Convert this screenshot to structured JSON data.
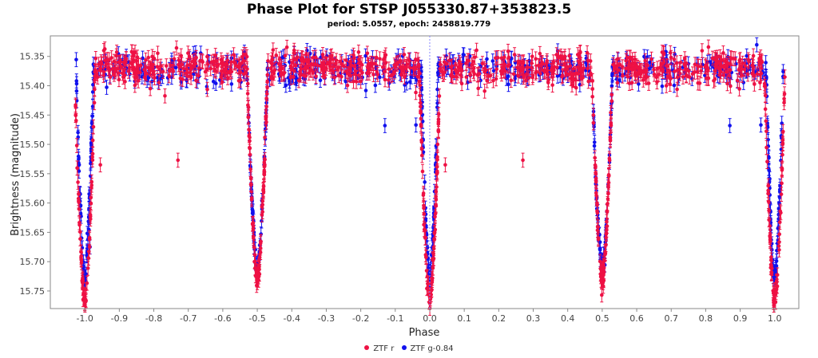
{
  "chart_data": {
    "type": "scatter",
    "title": "Phase Plot for STSP J055330.87+353823.5",
    "subtitle": "period: 5.0557, epoch: 2458819.779",
    "xlabel": "Phase",
    "ylabel": "Brightness (magnitude)",
    "xlim": [
      -1.1,
      1.07
    ],
    "ylim": [
      15.78,
      15.315
    ],
    "y_inverted": true,
    "x_ticks": [
      -1.0,
      -0.9,
      -0.8,
      -0.7,
      -0.6,
      -0.5,
      -0.4,
      -0.3,
      -0.2,
      -0.1,
      0.0,
      0.1,
      0.2,
      0.3,
      0.4,
      0.5,
      0.6,
      0.7,
      0.8,
      0.9,
      1.0
    ],
    "x_tick_labels": [
      "-1.0",
      "-0.9",
      "-0.8",
      "-0.7",
      "-0.6",
      "-0.5",
      "-0.4",
      "-0.3",
      "-0.2",
      "-0.1",
      "0.0",
      "0.1",
      "0.2",
      "0.3",
      "0.4",
      "0.5",
      "0.6",
      "0.7",
      "0.8",
      "0.9",
      "1.0"
    ],
    "y_ticks": [
      15.35,
      15.4,
      15.45,
      15.5,
      15.55,
      15.6,
      15.65,
      15.7,
      15.75
    ],
    "y_tick_labels": [
      "15.35",
      "15.40",
      "15.45",
      "15.50",
      "15.55",
      "15.60",
      "15.65",
      "15.70",
      "15.75"
    ],
    "grid": false,
    "reference_line_x": 0.0,
    "legend_position": "bottom-center",
    "series": [
      {
        "name": "ZTF r",
        "color": "#ee1144",
        "baseline": 15.37,
        "scatter": 0.013,
        "error_bar": 0.012,
        "points_per_unit_phase": 420,
        "primary_eclipse": {
          "phase": 0.0,
          "depth_mag": 0.4,
          "half_width": 0.03
        },
        "secondary_eclipse": {
          "phase": 0.5,
          "depth_mag": 0.36,
          "half_width": 0.03
        },
        "outliers": [
          [
            -0.955,
            15.535
          ],
          [
            -0.73,
            15.527
          ],
          [
            0.045,
            15.535
          ],
          [
            0.27,
            15.527
          ]
        ]
      },
      {
        "name": "ZTF g-0.84",
        "color": "#1111ee",
        "baseline": 15.372,
        "scatter": 0.013,
        "error_bar": 0.012,
        "points_per_unit_phase": 250,
        "primary_eclipse": {
          "phase": 0.0,
          "depth_mag": 0.36,
          "half_width": 0.025
        },
        "secondary_eclipse": {
          "phase": 0.5,
          "depth_mag": 0.34,
          "half_width": 0.03
        },
        "outliers": [
          [
            -0.985,
            15.675
          ],
          [
            -0.13,
            15.468
          ],
          [
            -0.04,
            15.467
          ],
          [
            0.87,
            15.468
          ],
          [
            0.96,
            15.467
          ]
        ]
      }
    ]
  }
}
